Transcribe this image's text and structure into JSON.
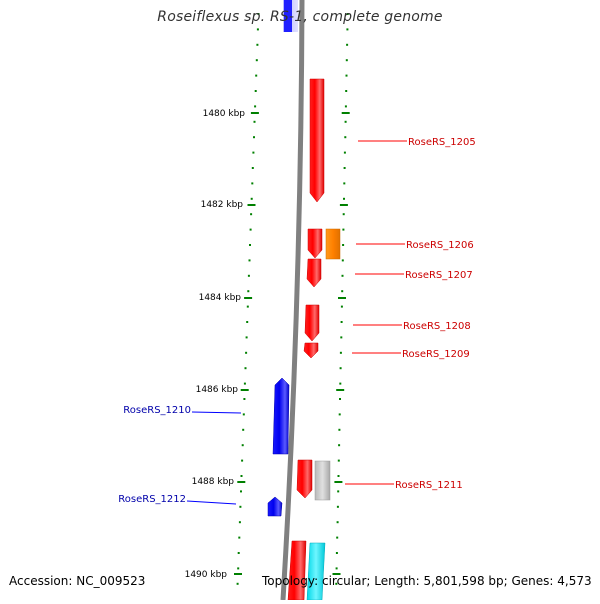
{
  "header": {
    "title": "Roseiflexus sp. RS-1, complete genome"
  },
  "footer": {
    "accession": "Accession: NC_009523",
    "summary": "Topology: circular; Length: 5,801,598 bp; Genes: 4,573"
  },
  "colors": {
    "backbone": "#808080",
    "tick": "#008000",
    "forward_gene": "#ff0000",
    "reverse_gene": "#0000ff",
    "forward_label": "#cc0000",
    "reverse_label": "#0000aa",
    "orange_feature": "#ff8c00",
    "grey_feature": "#c0c0c0",
    "cyan_feature": "#00e5ee"
  },
  "map": {
    "kbp_labels": [
      "1480 kbp",
      "1482 kbp",
      "1484 kbp",
      "1486 kbp",
      "1488 kbp",
      "1490 kbp"
    ],
    "gene_labels": [
      "RoseRS_1205",
      "RoseRS_1206",
      "RoseRS_1207",
      "RoseRS_1208",
      "RoseRS_1209",
      "RoseRS_1210",
      "RoseRS_1211",
      "RoseRS_1212"
    ]
  }
}
